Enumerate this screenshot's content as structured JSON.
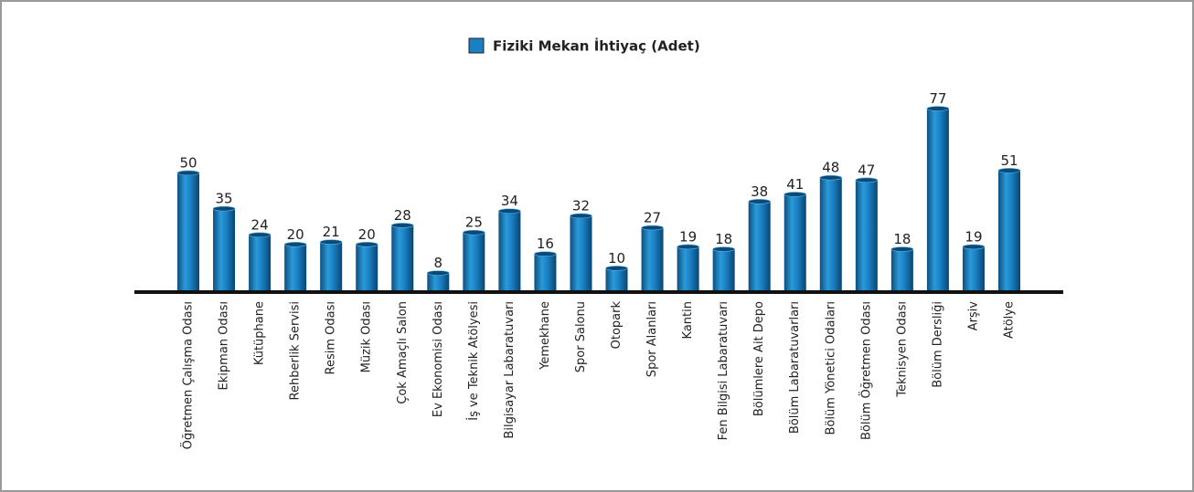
{
  "chart_data": {
    "type": "bar",
    "series": [
      {
        "name": "Fiziki Mekan İhtiyaç (Adet)",
        "color": "#1a80c4",
        "values": [
          50,
          35,
          24,
          20,
          21,
          20,
          28,
          8,
          25,
          34,
          16,
          32,
          10,
          27,
          19,
          18,
          38,
          41,
          48,
          47,
          18,
          77,
          19,
          51
        ]
      }
    ],
    "categories": [
      "Öğretmen Çalışma Odası",
      "Ekipman Odası",
      "Kütüphane",
      "Rehberlik Servisi",
      "Resim Odası",
      "Müzik Odası",
      "Çok Amaçlı Salon",
      "Ev Ekonomisi Odası",
      "İş ve Teknik Atölyesi",
      "Bilgisayar Labaratuvarı",
      "Yemekhane",
      "Spor Salonu",
      "Otopark",
      "Spor Alanları",
      "Kantin",
      "Fen Bilgisi Labaratuvarı",
      "Bölümlere Ait Depo",
      "Bölüm Labaratuvarları",
      "Bölüm Yönetici Odaları",
      "Bölüm Öğretmen Odası",
      "Teknisyen Odası",
      "Bölüm Dersliği",
      "Arşiv",
      "Atölye"
    ],
    "legend": "top"
  }
}
